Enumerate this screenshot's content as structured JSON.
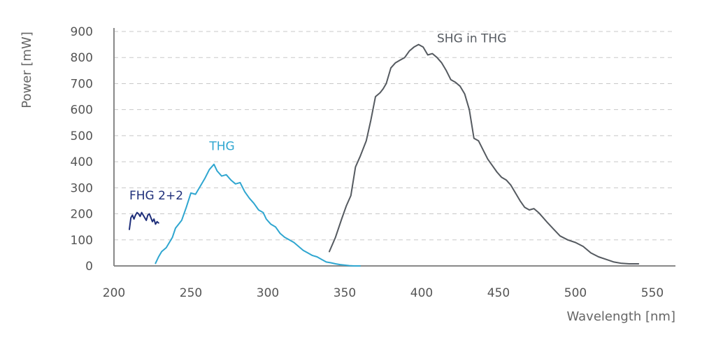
{
  "chart_data": {
    "type": "line",
    "title": "",
    "xlabel": "Wavelength [nm]",
    "ylabel": "Power [mW]",
    "xlim": [
      200,
      565
    ],
    "ylim": [
      0,
      900
    ],
    "xticks": [
      200,
      250,
      300,
      350,
      400,
      450,
      500,
      550
    ],
    "yticks": [
      0,
      100,
      200,
      300,
      400,
      500,
      600,
      700,
      800,
      900
    ],
    "grid": "horizontal dashed",
    "series": [
      {
        "name": "FHG 2+2",
        "color": "#1f2f7a",
        "label_at": [
          210,
          255
        ],
        "x": [
          210,
          211,
          212,
          213,
          214,
          215,
          216,
          217,
          218,
          219,
          220,
          221,
          222,
          223,
          224,
          225,
          226,
          227,
          228,
          229
        ],
        "y": [
          140,
          185,
          195,
          180,
          195,
          205,
          200,
          190,
          205,
          195,
          185,
          175,
          195,
          200,
          185,
          170,
          180,
          160,
          170,
          165
        ]
      },
      {
        "name": "THG",
        "color": "#2fa6d0",
        "label_at": [
          262,
          445
        ],
        "x": [
          227,
          229,
          231,
          234,
          238,
          240,
          244,
          247,
          250,
          253,
          256,
          259,
          262,
          265,
          267,
          270,
          273,
          276,
          279,
          282,
          285,
          288,
          291,
          294,
          297,
          299,
          302,
          305,
          308,
          311,
          314,
          317,
          320,
          323,
          326,
          329,
          332,
          335,
          338,
          341,
          344,
          347,
          350,
          353,
          356,
          360
        ],
        "y": [
          10,
          35,
          55,
          70,
          110,
          145,
          175,
          225,
          280,
          275,
          305,
          335,
          370,
          390,
          365,
          345,
          350,
          330,
          315,
          320,
          285,
          260,
          240,
          215,
          205,
          180,
          160,
          150,
          125,
          110,
          100,
          90,
          75,
          60,
          50,
          40,
          35,
          25,
          15,
          12,
          8,
          5,
          3,
          1,
          0,
          0
        ]
      },
      {
        "name": "SHG in THG",
        "color": "#555a60",
        "label_at": [
          410,
          858
        ],
        "x": [
          340,
          344,
          348,
          351,
          354,
          357,
          360,
          364,
          367,
          370,
          373,
          375,
          377,
          380,
          383,
          386,
          389,
          392,
          395,
          398,
          401,
          404,
          407,
          410,
          413,
          416,
          419,
          422,
          425,
          428,
          431,
          434,
          437,
          440,
          443,
          446,
          449,
          452,
          455,
          458,
          461,
          464,
          467,
          470,
          473,
          476,
          479,
          482,
          486,
          490,
          495,
          500,
          505,
          510,
          515,
          520,
          525,
          530,
          535,
          541
        ],
        "y": [
          55,
          110,
          180,
          230,
          270,
          380,
          420,
          480,
          560,
          650,
          665,
          680,
          700,
          760,
          780,
          790,
          800,
          825,
          840,
          850,
          840,
          810,
          815,
          800,
          780,
          750,
          715,
          705,
          690,
          660,
          600,
          490,
          480,
          445,
          410,
          385,
          360,
          340,
          330,
          310,
          280,
          250,
          225,
          215,
          220,
          205,
          185,
          165,
          140,
          115,
          100,
          90,
          75,
          50,
          35,
          25,
          15,
          10,
          8,
          8
        ]
      }
    ]
  }
}
